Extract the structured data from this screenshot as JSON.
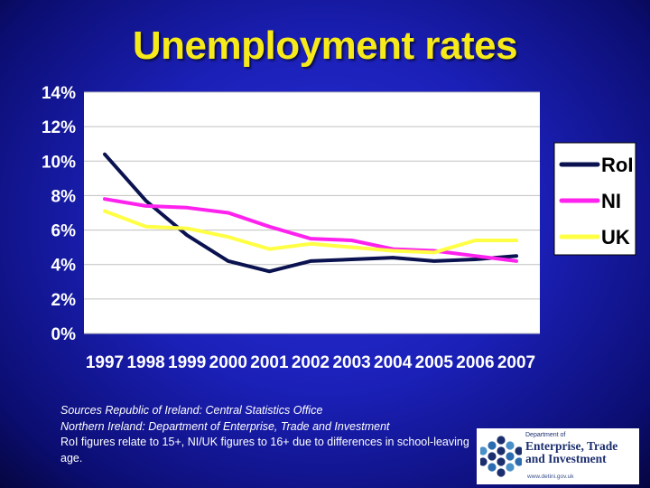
{
  "title": "Unemployment rates",
  "chart_data": {
    "type": "line",
    "title": "Unemployment rates",
    "x": [
      "1997",
      "1998",
      "1999",
      "2000",
      "2001",
      "2002",
      "2003",
      "2004",
      "2005",
      "2006",
      "2007"
    ],
    "y_ticks": [
      "0%",
      "2%",
      "4%",
      "6%",
      "8%",
      "10%",
      "12%",
      "14%"
    ],
    "ylim": [
      0,
      14
    ],
    "grid": true,
    "legend_position": "right",
    "series": [
      {
        "name": "RoI",
        "color": "#0a1250",
        "values": [
          10.4,
          7.7,
          5.7,
          4.2,
          3.6,
          4.2,
          4.3,
          4.4,
          4.2,
          4.3,
          4.5
        ]
      },
      {
        "name": "NI",
        "color": "#ff22ee",
        "values": [
          7.8,
          7.4,
          7.3,
          7.0,
          6.2,
          5.5,
          5.4,
          4.9,
          4.8,
          4.5,
          4.2
        ]
      },
      {
        "name": "UK",
        "color": "#ffff44",
        "values": [
          7.1,
          6.2,
          6.1,
          5.6,
          4.9,
          5.2,
          5.0,
          4.8,
          4.7,
          5.4,
          5.4
        ]
      }
    ]
  },
  "footnote": {
    "line1": "Sources Republic of Ireland: Central Statistics Office",
    "line2": "Northern Ireland: Department of Enterprise, Trade and Investment",
    "line3": "RoI figures relate to 15+, NI/UK figures to 16+ due to differences in school-leaving age."
  },
  "logo": {
    "dept": "Department of",
    "name": "Enterprise, Trade and Investment",
    "url": "www.detini.gov.uk"
  }
}
